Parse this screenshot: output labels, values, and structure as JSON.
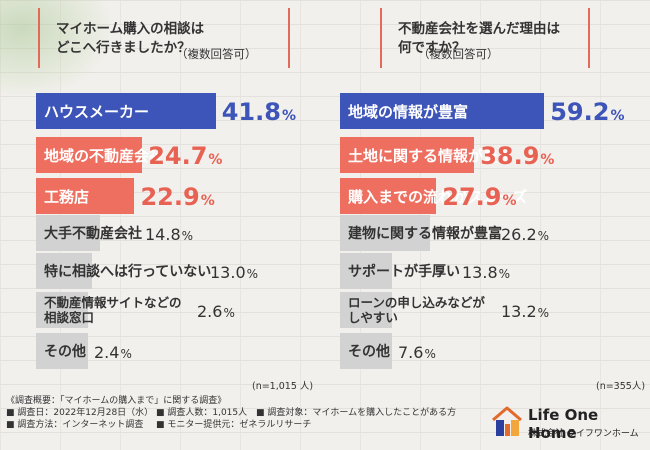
{
  "colors": {
    "blue": "#3d54b8",
    "salmon": "#ee6f60",
    "gray": "#d2d2d2",
    "blue_text": "#3d54b8",
    "salmon_text": "#e86253",
    "dark_text": "#333333"
  },
  "chart_data": [
    {
      "type": "bar",
      "title": "マイホーム購入の相談は\nどこへ行きましたか？",
      "subtitle": "（複数回答可）",
      "categories": [
        "ハウスメーカー",
        "地域の不動産会社",
        "工務店",
        "大手不動産会社",
        "特に相談へは行っていない",
        "不動産情報サイトなどの\n相談窓口",
        "その他"
      ],
      "values": [
        41.8,
        24.7,
        22.9,
        14.8,
        13.0,
        2.6,
        2.4
      ],
      "unit": "%",
      "n_label": "(n=1,015 人)"
    },
    {
      "type": "bar",
      "title": "不動産会社を選んだ理由は\n何ですか？",
      "subtitle": "（複数回答可）",
      "categories": [
        "地域の情報が豊富",
        "土地に関する情報が豊富",
        "購入までの流れがスムーズ",
        "建物に関する情報が豊富",
        "サポートが手厚い",
        "ローンの申し込みなどが\nしやすい",
        "その他"
      ],
      "values": [
        59.2,
        38.9,
        27.9,
        26.2,
        13.8,
        13.2,
        7.6
      ],
      "unit": "%",
      "n_label": "(n=355人)"
    }
  ],
  "footer": {
    "line1": "《調査概要：「マイホームの購入まで」に関する調査》",
    "date": "■ 調査日：2022年12月28日（水）",
    "people": "■ 調査人数：1,015人",
    "target": "■ 調査対象：マイホームを購入したことがある方",
    "method": "■ 調査方法：インターネット調査",
    "provider": "■ モニター提供元：ゼネラルリサーチ"
  },
  "logo": {
    "name": "Life One Home",
    "company": "株式会社 ライフワンホーム"
  }
}
